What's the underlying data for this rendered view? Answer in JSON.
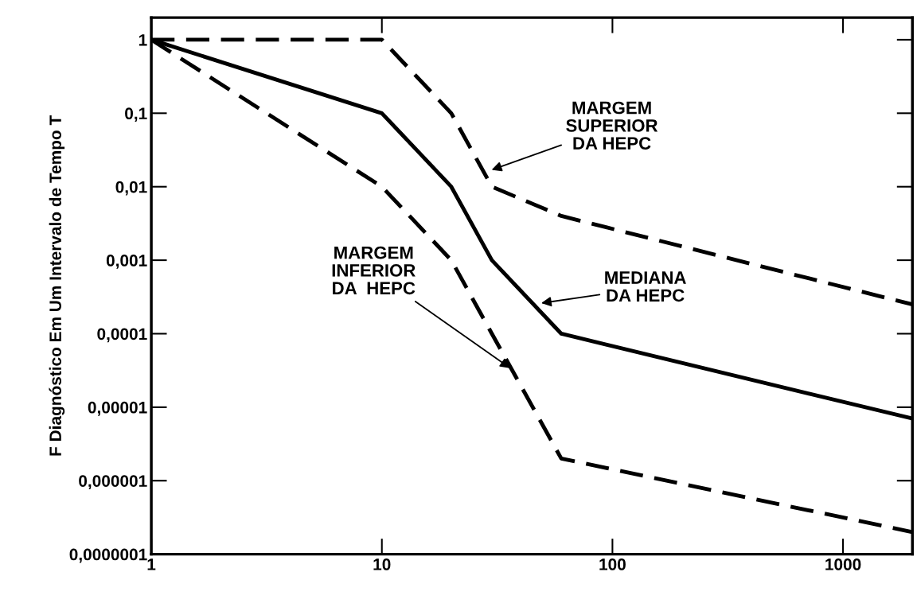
{
  "chart_data": {
    "type": "line",
    "ylabel": "F Diagnóstico Em Um Intervalo de Tempo T",
    "log": "xy",
    "grid": false,
    "xlim": [
      1,
      2000
    ],
    "ylim": [
      1e-07,
      2
    ],
    "xticks": [
      1,
      10,
      100,
      1000
    ],
    "yticks": [
      {
        "value": 1,
        "label": "1"
      },
      {
        "value": 0.1,
        "label": "0,1"
      },
      {
        "value": 0.01,
        "label": "0,01"
      },
      {
        "value": 0.001,
        "label": "0,001"
      },
      {
        "value": 0.0001,
        "label": "0,0001"
      },
      {
        "value": 1e-05,
        "label": "0,00001"
      },
      {
        "value": 1e-06,
        "label": "0,000001"
      },
      {
        "value": 1e-07,
        "label": "0,0000001"
      }
    ],
    "series": [
      {
        "color": "#000000",
        "line_style": "dashed",
        "x": [
          1,
          10,
          20,
          30,
          60,
          2000
        ],
        "values": [
          1,
          1,
          0.1,
          0.01,
          0.004,
          0.00025
        ]
      },
      {
        "color": "#000000",
        "line_style": "solid",
        "x": [
          1,
          10,
          20,
          30,
          60,
          2000
        ],
        "values": [
          1,
          0.1,
          0.01,
          0.001,
          0.0001,
          7e-06
        ]
      },
      {
        "color": "#000000",
        "line_style": "dashed",
        "x": [
          1,
          10,
          20,
          30,
          60,
          2000
        ],
        "values": [
          1,
          0.01,
          0.001,
          0.0001,
          2e-06,
          2e-07
        ]
      }
    ],
    "annotations": [
      "MARGEM\nSUPERIOR\nDA HEPC",
      "MEDIANA\nDA HEPC",
      {
        "text": "MARGEM\nINFERIOR\nDA  HEPC",
        "x": 36,
        "y": 3.4e-05
      }
    ]
  }
}
